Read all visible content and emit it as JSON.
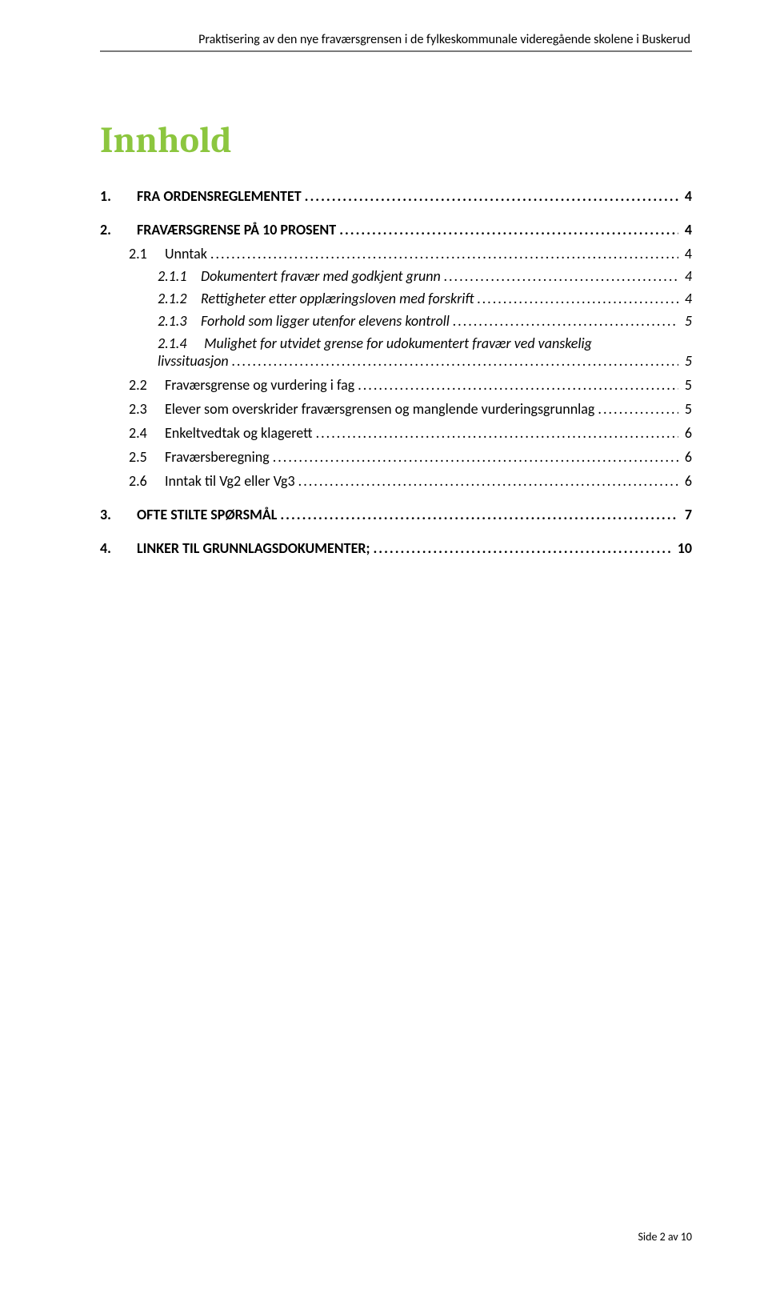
{
  "running_head": "Praktisering av den nye fraværsgrensen i de fylkeskommunale videregående skolene i Buskerud",
  "title": "Innhold",
  "leader_dots": "..............................................................................................................................................................................................................................................",
  "toc": {
    "s1": {
      "num": "1.",
      "label": "FRA ORDENSREGLEMENTET",
      "page": "4"
    },
    "s2": {
      "num": "2.",
      "label": "FRAVÆRSGRENSE PÅ 10 PROSENT",
      "page": "4"
    },
    "s21": {
      "num": "2.1",
      "label": "Unntak",
      "page": "4"
    },
    "s211": {
      "num": "2.1.1",
      "label": "Dokumentert fravær med godkjent grunn",
      "page": "4"
    },
    "s212": {
      "num": "2.1.2",
      "label": "Rettigheter etter opplæringsloven med forskrift",
      "page": "4"
    },
    "s213": {
      "num": "2.1.3",
      "label": "Forhold som ligger utenfor elevens kontroll",
      "page": "5"
    },
    "s214": {
      "num": "2.1.4",
      "label_a": "Mulighet for utvidet grense for udokumentert fravær ved vanskelig",
      "label_b": "livssituasjon",
      "page": "5"
    },
    "s22": {
      "num": "2.2",
      "label": "Fraværsgrense og vurdering i fag",
      "page": "5"
    },
    "s23": {
      "num": "2.3",
      "label": "Elever som overskrider fraværsgrensen og manglende vurderingsgrunnlag",
      "page": "5"
    },
    "s24": {
      "num": "2.4",
      "label": "Enkeltvedtak og klagerett",
      "page": "6"
    },
    "s25": {
      "num": "2.5",
      "label": "Fraværsberegning",
      "page": "6"
    },
    "s26": {
      "num": "2.6",
      "label": "Inntak til Vg2 eller Vg3",
      "page": "6"
    },
    "s3": {
      "num": "3.",
      "label": "OFTE STILTE SPØRSMÅL",
      "page": "7"
    },
    "s4": {
      "num": "4.",
      "label": "LINKER TIL GRUNNLAGSDOKUMENTER;",
      "page": "10"
    }
  },
  "footer": "Side 2 av 10"
}
